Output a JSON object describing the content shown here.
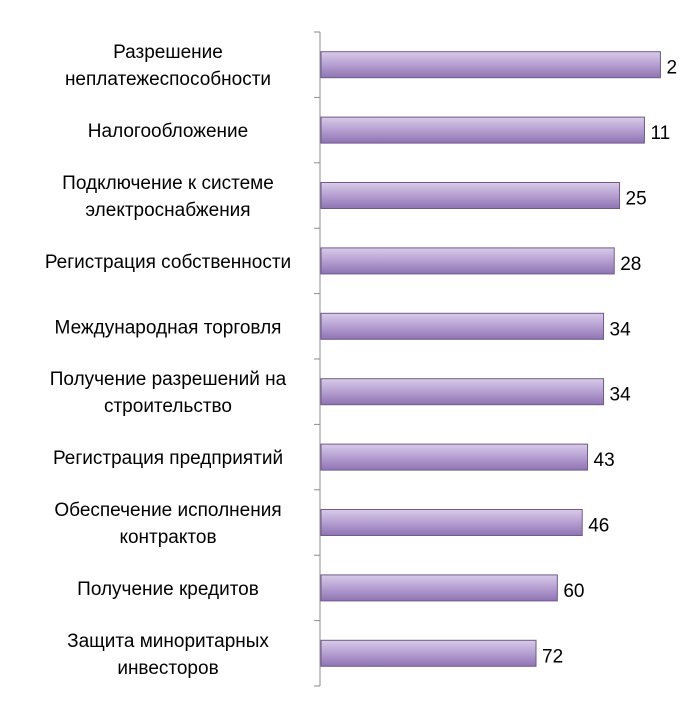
{
  "chart_data": {
    "type": "bar",
    "orientation": "horizontal",
    "categories": [
      [
        "Разрешение",
        "неплатежеспособности"
      ],
      [
        "Налогообложение"
      ],
      [
        "Подключение к системе",
        "электроснабжения"
      ],
      [
        "Регистрация собственности"
      ],
      [
        "Международная торговля"
      ],
      [
        "Получение разрешений на",
        "строительство"
      ],
      [
        "Регистрация предприятий"
      ],
      [
        "Обеспечение исполнения",
        "контрактов"
      ],
      [
        "Получение кредитов"
      ],
      [
        "Защита миноритарных",
        "инвесторов"
      ]
    ],
    "values": [
      2,
      11,
      25,
      28,
      34,
      34,
      43,
      46,
      60,
      72
    ],
    "axis": "reversed",
    "xlim": [
      0,
      72
    ],
    "title": "",
    "xlabel": "",
    "ylabel": "",
    "grid": false,
    "legend": "none",
    "colors": {
      "bar_fill_top": "#d9cbe8",
      "bar_fill_mid": "#b9a3d4",
      "bar_fill_bottom": "#8e74b2",
      "bar_stroke": "#6f5a8c",
      "axis": "#8c8c8c"
    }
  }
}
